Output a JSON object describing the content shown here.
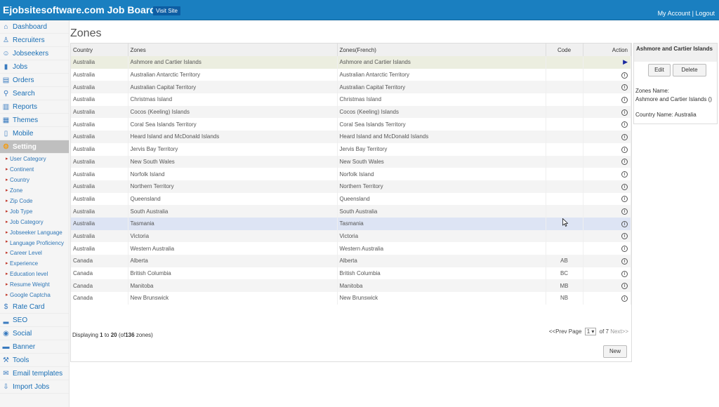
{
  "header": {
    "brand": "Ejobsitesoftware.com Job Board",
    "visit_site": "Visit Site",
    "my_account": "My Account",
    "separator": "|",
    "logout": "Logout"
  },
  "sidebar": {
    "items": [
      {
        "label": "Dashboard",
        "icon": "house-icon"
      },
      {
        "label": "Recruiters",
        "icon": "recruiter-icon"
      },
      {
        "label": "Jobseekers",
        "icon": "jobseekers-icon"
      },
      {
        "label": "Jobs",
        "icon": "jobs-icon"
      },
      {
        "label": "Orders",
        "icon": "orders-icon"
      },
      {
        "label": "Search",
        "icon": "search-icon"
      },
      {
        "label": "Reports",
        "icon": "reports-icon"
      },
      {
        "label": "Themes",
        "icon": "themes-icon"
      },
      {
        "label": "Mobile",
        "icon": "mobile-icon"
      },
      {
        "label": "Setting",
        "icon": "gear-icon"
      }
    ],
    "setting_sub": [
      "User Category",
      "Continent",
      "Country",
      "Zone",
      "Zip Code",
      "Job Type",
      "Job Category",
      "Jobseeker Language",
      "Language Proficiency",
      "Career Level",
      "Experience",
      "Education level",
      "Resume Weight",
      "Google Captcha"
    ],
    "bottom_items": [
      {
        "label": "Rate Card",
        "icon": "dollar-icon"
      },
      {
        "label": "SEO",
        "icon": "seo-icon"
      },
      {
        "label": "Social",
        "icon": "social-icon"
      },
      {
        "label": "Banner",
        "icon": "banner-icon"
      },
      {
        "label": "Tools",
        "icon": "tools-icon"
      },
      {
        "label": "Email templates",
        "icon": "email-icon"
      },
      {
        "label": "Import Jobs",
        "icon": "import-icon"
      }
    ]
  },
  "main": {
    "title": "Zones",
    "columns": {
      "country": "Country",
      "zones": "Zones",
      "zones_fr": "Zones(French)",
      "code": "Code",
      "action": "Action"
    },
    "rows": [
      {
        "country": "Australia",
        "zone": "Ashmore and Cartier Islands",
        "zone_fr": "Ashmore and Cartier Islands",
        "code": ""
      },
      {
        "country": "Australia",
        "zone": "Australian Antarctic Territory",
        "zone_fr": "Australian Antarctic Territory",
        "code": ""
      },
      {
        "country": "Australia",
        "zone": "Australian Capital Territory",
        "zone_fr": "Australian Capital Territory",
        "code": ""
      },
      {
        "country": "Australia",
        "zone": "Christmas Island",
        "zone_fr": "Christmas Island",
        "code": ""
      },
      {
        "country": "Australia",
        "zone": "Cocos (Keeling) Islands",
        "zone_fr": "Cocos (Keeling) Islands",
        "code": ""
      },
      {
        "country": "Australia",
        "zone": "Coral Sea Islands Territory",
        "zone_fr": "Coral Sea Islands Territory",
        "code": ""
      },
      {
        "country": "Australia",
        "zone": "Heard Island and McDonald Islands",
        "zone_fr": "Heard Island and McDonald Islands",
        "code": ""
      },
      {
        "country": "Australia",
        "zone": "Jervis Bay Territory",
        "zone_fr": "Jervis Bay Territory",
        "code": ""
      },
      {
        "country": "Australia",
        "zone": "New South Wales",
        "zone_fr": "New South Wales",
        "code": ""
      },
      {
        "country": "Australia",
        "zone": "Norfolk Island",
        "zone_fr": "Norfolk Island",
        "code": ""
      },
      {
        "country": "Australia",
        "zone": "Northern Territory",
        "zone_fr": "Northern Territory",
        "code": ""
      },
      {
        "country": "Australia",
        "zone": "Queensland",
        "zone_fr": "Queensland",
        "code": ""
      },
      {
        "country": "Australia",
        "zone": "South Australia",
        "zone_fr": "South Australia",
        "code": ""
      },
      {
        "country": "Australia",
        "zone": "Tasmania",
        "zone_fr": "Tasmania",
        "code": ""
      },
      {
        "country": "Australia",
        "zone": "Victoria",
        "zone_fr": "Victoria",
        "code": ""
      },
      {
        "country": "Australia",
        "zone": "Western Australia",
        "zone_fr": "Western Australia",
        "code": ""
      },
      {
        "country": "Canada",
        "zone": "Alberta",
        "zone_fr": "Alberta",
        "code": "AB"
      },
      {
        "country": "Canada",
        "zone": "British Columbia",
        "zone_fr": "British Columbia",
        "code": "BC"
      },
      {
        "country": "Canada",
        "zone": "Manitoba",
        "zone_fr": "Manitoba",
        "code": "MB"
      },
      {
        "country": "Canada",
        "zone": "New Brunswick",
        "zone_fr": "New Brunswick",
        "code": "NB"
      }
    ],
    "footer": {
      "displaying": "Displaying",
      "from": "1",
      "to_word": "to",
      "to": "20",
      "of_open": "(of",
      "total": "136",
      "zones_close": "zones)"
    },
    "pager": {
      "prev": "<<Prev",
      "page_label": "Page",
      "current": "1",
      "of_label": "of 7",
      "next": "Next>>"
    },
    "new_button": "New"
  },
  "detail": {
    "title": "Ashmore and Cartier Islands",
    "edit": "Edit",
    "delete": "Delete",
    "zones_name_label": "Zones Name:",
    "zones_name_value": "Ashmore and Cartier Islands ()",
    "country_label": "Country Name:",
    "country_value": "Australia"
  },
  "colors": {
    "topbar": "#1a7fc0",
    "link": "#1a6fb5",
    "selected_row": "#eceee0",
    "hover_row": "#dde4f4"
  }
}
